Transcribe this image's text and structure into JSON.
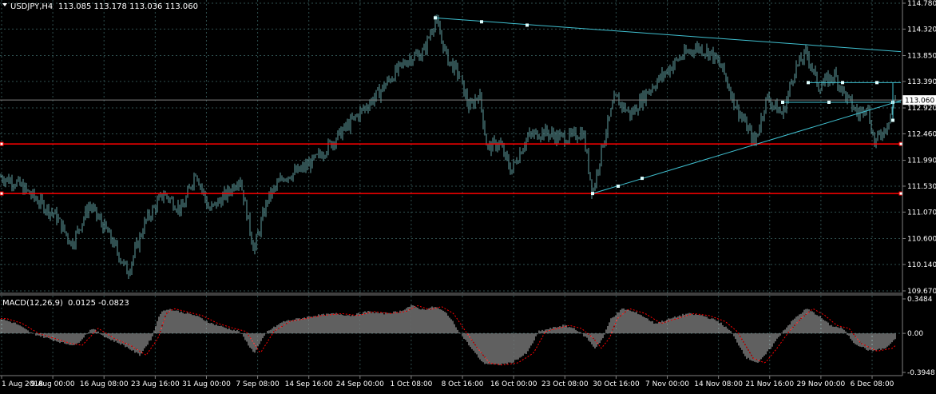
{
  "header": {
    "symbol": "USDJPY,H4",
    "ohlc": "113.085 113.178 113.036 113.060"
  },
  "macd_header": {
    "label": "MACD(12,26,9)",
    "values": "0.0125 -0.0823"
  },
  "colors": {
    "background": "#000000",
    "grid": "#2f4f4f",
    "candle": "#5f9ea0",
    "trendline": "#40c0d0",
    "support_resistance": "#ff0000",
    "macd_hist": "#c0c0c0",
    "macd_signal": "#ff0000",
    "text": "#ffffff"
  },
  "chart_data": [
    {
      "type": "candlestick",
      "title": "USDJPY,H4",
      "y_ticks": [
        "114.780",
        "114.320",
        "113.850",
        "113.390",
        "112.920",
        "112.460",
        "111.990",
        "111.530",
        "111.070",
        "110.600",
        "110.140",
        "109.670"
      ],
      "ylim": [
        109.67,
        114.78
      ],
      "current_price_label": "113.060",
      "current_price": 113.06,
      "x_tick_labels": [
        "1 Aug 2018",
        "9 Aug 00:00",
        "16 Aug 08:00",
        "23 Aug 16:00",
        "31 Aug 00:00",
        "7 Sep 08:00",
        "14 Sep 16:00",
        "24 Sep 00:00",
        "1 Oct 08:00",
        "8 Oct 16:00",
        "16 Oct 00:00",
        "23 Oct 08:00",
        "30 Oct 16:00",
        "7 Nov 00:00",
        "14 Nov 08:00",
        "21 Nov 16:00",
        "29 Nov 00:00",
        "6 Dec 08:00"
      ],
      "close_path": [
        [
          0,
          111.7
        ],
        [
          20,
          111.6
        ],
        [
          45,
          111.3
        ],
        [
          70,
          111.0
        ],
        [
          90,
          110.5
        ],
        [
          112,
          111.2
        ],
        [
          135,
          110.7
        ],
        [
          160,
          110.0
        ],
        [
          182,
          110.9
        ],
        [
          205,
          111.4
        ],
        [
          228,
          111.1
        ],
        [
          245,
          111.8
        ],
        [
          262,
          111.1
        ],
        [
          285,
          111.4
        ],
        [
          300,
          111.7
        ],
        [
          318,
          110.4
        ],
        [
          335,
          111.3
        ],
        [
          355,
          111.7
        ],
        [
          375,
          111.8
        ],
        [
          395,
          112.0
        ],
        [
          415,
          112.3
        ],
        [
          435,
          112.6
        ],
        [
          455,
          112.9
        ],
        [
          475,
          113.2
        ],
        [
          492,
          113.5
        ],
        [
          512,
          113.8
        ],
        [
          530,
          113.9
        ],
        [
          545,
          114.5
        ],
        [
          560,
          113.8
        ],
        [
          575,
          113.5
        ],
        [
          588,
          112.9
        ],
        [
          600,
          113.2
        ],
        [
          610,
          112.2
        ],
        [
          625,
          112.3
        ],
        [
          640,
          111.8
        ],
        [
          660,
          112.4
        ],
        [
          680,
          112.5
        ],
        [
          700,
          112.4
        ],
        [
          715,
          112.4
        ],
        [
          730,
          112.5
        ],
        [
          742,
          111.4
        ],
        [
          755,
          112.3
        ],
        [
          770,
          113.1
        ],
        [
          790,
          112.8
        ],
        [
          810,
          113.2
        ],
        [
          830,
          113.5
        ],
        [
          850,
          113.8
        ],
        [
          872,
          114.0
        ],
        [
          890,
          113.9
        ],
        [
          905,
          113.6
        ],
        [
          920,
          113.0
        ],
        [
          945,
          112.3
        ],
        [
          960,
          113.1
        ],
        [
          980,
          112.8
        ],
        [
          995,
          113.6
        ],
        [
          1010,
          113.9
        ],
        [
          1025,
          113.3
        ],
        [
          1045,
          113.5
        ],
        [
          1060,
          113.1
        ],
        [
          1075,
          112.8
        ],
        [
          1085,
          113.0
        ],
        [
          1095,
          112.3
        ],
        [
          1110,
          112.6
        ],
        [
          1120,
          113.06
        ]
      ],
      "support_resistance": [
        {
          "price": 112.28
        },
        {
          "price": 111.4
        }
      ],
      "trendlines": [
        {
          "p1": [
            545,
            114.52
          ],
          "p2": [
            1128,
            113.92
          ],
          "anchors": [
            [
              603,
              114.45
            ],
            [
              660,
              114.39
            ]
          ]
        },
        {
          "p1": [
            742,
            111.4
          ],
          "p2": [
            1128,
            113.05
          ],
          "anchors": [
            [
              774,
              111.53
            ],
            [
              804,
              111.67
            ]
          ]
        },
        {
          "p1": [
            1012,
            113.37
          ],
          "p2": [
            1128,
            113.37
          ],
          "anchors": [
            [
              1055,
              113.37
            ],
            [
              1098,
              113.37
            ]
          ]
        },
        {
          "p1": [
            980,
            113.02
          ],
          "p2": [
            1128,
            113.02
          ],
          "anchors": [
            [
              1038,
              113.02
            ],
            [
              1118,
              113.02
            ]
          ]
        },
        {
          "p1": [
            1118,
            112.7
          ],
          "p2": [
            1118,
            113.37
          ],
          "anchors": []
        }
      ]
    },
    {
      "type": "histogram",
      "title": "MACD(12,26,9)",
      "y_ticks": [
        "0.3484",
        "0.00",
        "-0.3948"
      ],
      "ylim": [
        -0.3948,
        0.3484
      ],
      "hist_path": [
        [
          0,
          0.15
        ],
        [
          20,
          0.1
        ],
        [
          40,
          0.0
        ],
        [
          60,
          -0.05
        ],
        [
          80,
          -0.1
        ],
        [
          95,
          -0.12
        ],
        [
          115,
          0.05
        ],
        [
          135,
          -0.05
        ],
        [
          155,
          -0.12
        ],
        [
          175,
          -0.22
        ],
        [
          190,
          -0.05
        ],
        [
          200,
          0.2
        ],
        [
          210,
          0.25
        ],
        [
          225,
          0.22
        ],
        [
          245,
          0.18
        ],
        [
          265,
          0.1
        ],
        [
          285,
          0.05
        ],
        [
          300,
          0.02
        ],
        [
          318,
          -0.2
        ],
        [
          335,
          0.02
        ],
        [
          355,
          0.12
        ],
        [
          375,
          0.15
        ],
        [
          395,
          0.18
        ],
        [
          420,
          0.2
        ],
        [
          440,
          0.18
        ],
        [
          460,
          0.22
        ],
        [
          480,
          0.2
        ],
        [
          500,
          0.22
        ],
        [
          515,
          0.28
        ],
        [
          530,
          0.24
        ],
        [
          545,
          0.27
        ],
        [
          560,
          0.2
        ],
        [
          575,
          0.02
        ],
        [
          590,
          -0.15
        ],
        [
          605,
          -0.3
        ],
        [
          620,
          -0.32
        ],
        [
          640,
          -0.3
        ],
        [
          660,
          -0.2
        ],
        [
          675,
          0.02
        ],
        [
          690,
          0.05
        ],
        [
          705,
          0.08
        ],
        [
          720,
          0.05
        ],
        [
          735,
          -0.05
        ],
        [
          745,
          -0.15
        ],
        [
          755,
          -0.05
        ],
        [
          765,
          0.15
        ],
        [
          780,
          0.25
        ],
        [
          800,
          0.2
        ],
        [
          820,
          0.1
        ],
        [
          840,
          0.15
        ],
        [
          860,
          0.2
        ],
        [
          880,
          0.18
        ],
        [
          900,
          0.12
        ],
        [
          915,
          0.02
        ],
        [
          935,
          -0.25
        ],
        [
          950,
          -0.3
        ],
        [
          965,
          -0.15
        ],
        [
          980,
          0.02
        ],
        [
          995,
          0.15
        ],
        [
          1010,
          0.25
        ],
        [
          1025,
          0.18
        ],
        [
          1040,
          0.08
        ],
        [
          1055,
          0.05
        ],
        [
          1070,
          -0.1
        ],
        [
          1090,
          -0.18
        ],
        [
          1110,
          -0.15
        ],
        [
          1120,
          -0.06
        ]
      ]
    }
  ]
}
